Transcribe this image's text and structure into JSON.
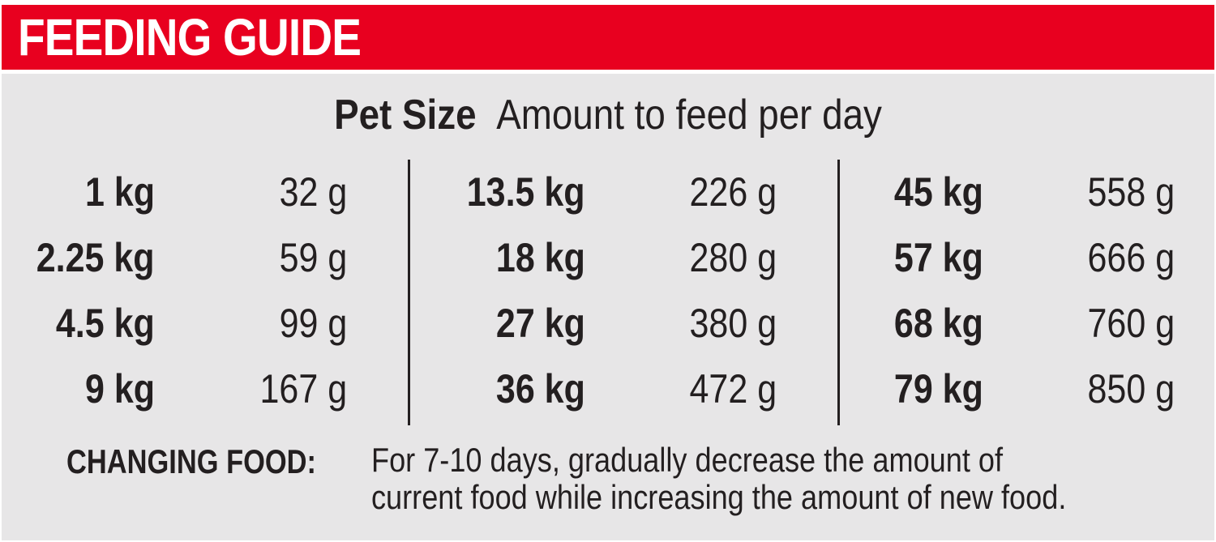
{
  "banner": {
    "title": "FEEDING GUIDE"
  },
  "header": {
    "size_label": "Pet Size",
    "amount_label": "Amount to feed per day"
  },
  "columns": [
    {
      "rows": [
        {
          "size": "1 kg",
          "amount": "32 g"
        },
        {
          "size": "2.25 kg",
          "amount": "59 g"
        },
        {
          "size": "4.5 kg",
          "amount": "99 g"
        },
        {
          "size": "9 kg",
          "amount": "167 g"
        }
      ]
    },
    {
      "rows": [
        {
          "size": "13.5 kg",
          "amount": "226 g"
        },
        {
          "size": "18 kg",
          "amount": "280 g"
        },
        {
          "size": "27 kg",
          "amount": "380 g"
        },
        {
          "size": "36 kg",
          "amount": "472 g"
        }
      ]
    },
    {
      "rows": [
        {
          "size": "45 kg",
          "amount": "558 g"
        },
        {
          "size": "57 kg",
          "amount": "666 g"
        },
        {
          "size": "68 kg",
          "amount": "760 g"
        },
        {
          "size": "79 kg",
          "amount": "850 g"
        }
      ]
    }
  ],
  "note": {
    "label": "CHANGING FOOD:",
    "line1": "For 7-10 days, gradually decrease the amount of",
    "line2": "current food while increasing the amount of new food."
  },
  "colors": {
    "banner": "#e8001f",
    "panel": "#e7e6e7",
    "text": "#231f20"
  }
}
